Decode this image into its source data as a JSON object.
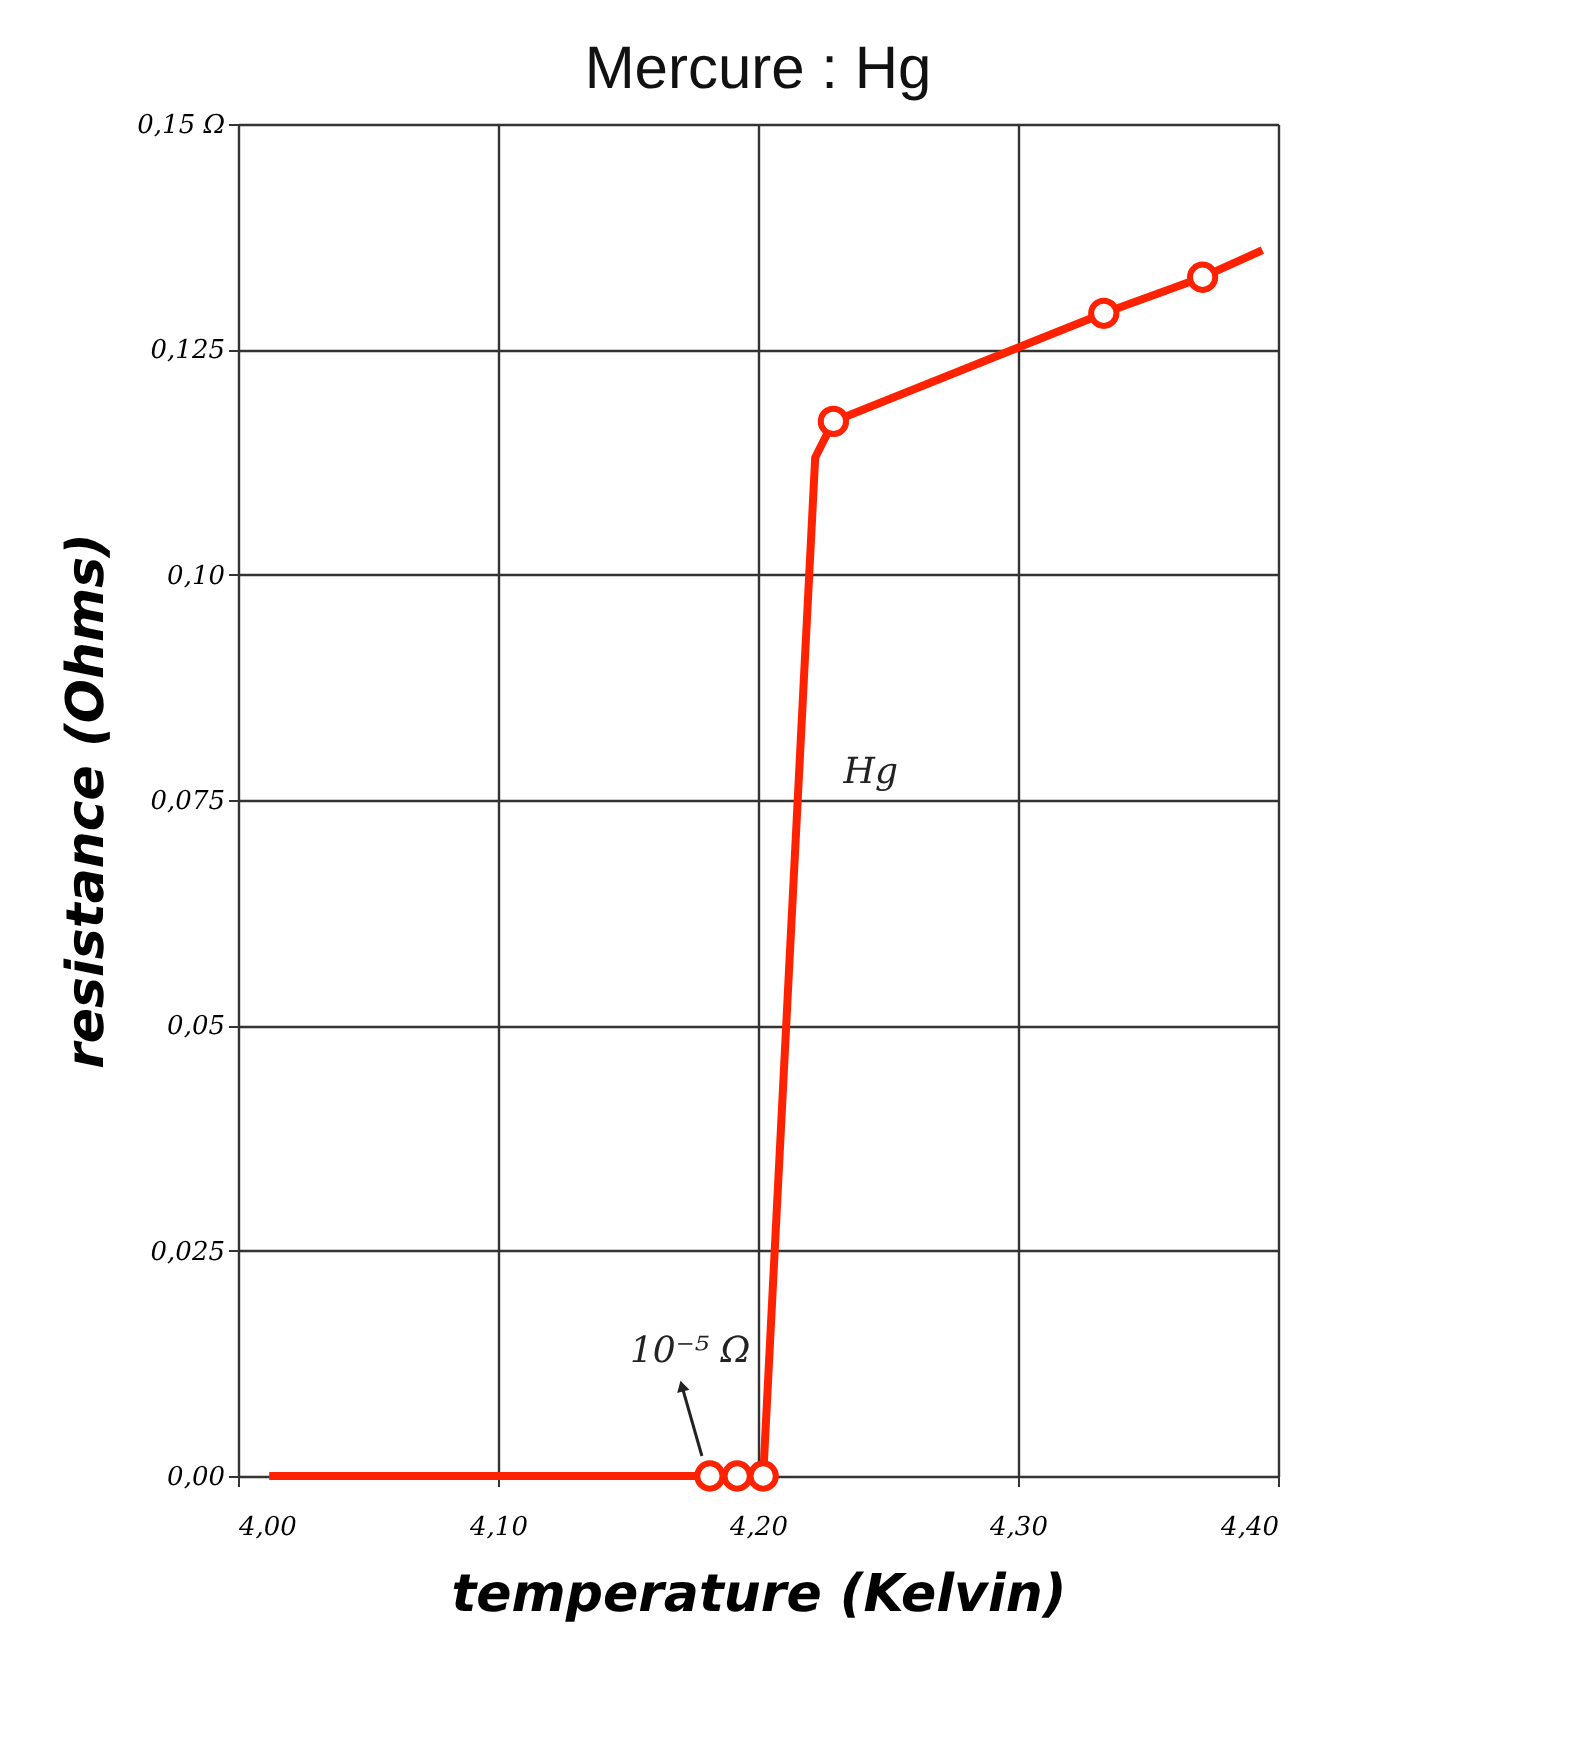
{
  "chart_data": {
    "type": "line",
    "title": "Mercure : Hg",
    "xlabel": "temperature (Kelvin)",
    "ylabel": "resistance (Ohms)",
    "series": [
      {
        "color": "#ff2200",
        "marker": "none",
        "x": [
          4.012,
          4.1815,
          4.192,
          4.202,
          4.222,
          4.229,
          4.333,
          4.371,
          4.394
        ],
        "values": [
          0,
          0,
          0,
          0,
          0.113,
          0.117,
          0.129,
          0.133,
          0.136
        ]
      },
      {
        "type": "scatter",
        "color": "#ff2200",
        "marker": "circle",
        "x": [
          4.1815,
          4.192,
          4.202,
          4.229,
          4.333,
          4.371
        ],
        "values": [
          0,
          0,
          0,
          0.117,
          0.129,
          0.133
        ]
      }
    ],
    "xlim": [
      4.0,
      4.4
    ],
    "xticks": [
      {
        "value": 4.0,
        "label": "4,00"
      },
      {
        "value": 4.1,
        "label": "4,10"
      },
      {
        "value": 4.2,
        "label": "4,20"
      },
      {
        "value": 4.3,
        "label": "4,30"
      },
      {
        "value": 4.4,
        "label": "4,40"
      }
    ],
    "ylim": [
      0,
      0.15
    ],
    "yticks": [
      {
        "value": 0,
        "label": "0,00"
      },
      {
        "value": 0.025,
        "label": "0,025"
      },
      {
        "value": 0.05,
        "label": "0,05"
      },
      {
        "value": 0.075,
        "label": "0,075"
      },
      {
        "value": 0.1,
        "label": "0,10"
      },
      {
        "value": 0.125,
        "label": "0,125"
      },
      {
        "value": 0.15,
        "label": "0,15 Ω"
      }
    ],
    "grid": true,
    "annotations": [
      {
        "text": "Hg",
        "x": 4.216,
        "y": 0.078
      },
      {
        "text": "10⁻⁵ Ω",
        "x": 4.1815,
        "y": 0
      }
    ]
  }
}
